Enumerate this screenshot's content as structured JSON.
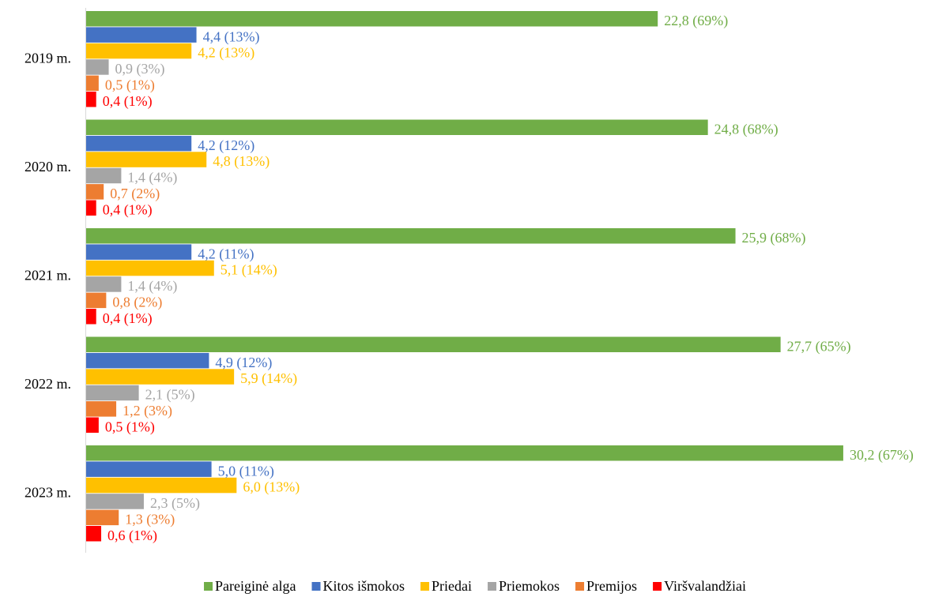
{
  "chart_data": {
    "type": "bar",
    "orientation": "horizontal",
    "categories": [
      "2019 m.",
      "2020 m.",
      "2021 m.",
      "2022 m.",
      "2023 m."
    ],
    "series": [
      {
        "name": "Pareiginė alga",
        "color": "#70ad47",
        "values": [
          22.8,
          24.8,
          25.9,
          27.7,
          30.2
        ],
        "value_labels": [
          "22,8 (69%)",
          "24,8 (68%)",
          "25,9 (68%)",
          "27,7 (65%)",
          "30,2 (67%)"
        ]
      },
      {
        "name": "Kitos išmokos",
        "color": "#4472c4",
        "values": [
          4.4,
          4.2,
          4.2,
          4.9,
          5.0
        ],
        "value_labels": [
          "4,4 (13%)",
          "4,2 (12%)",
          "4,2 (11%)",
          "4,9 (12%)",
          "5,0 (11%)"
        ]
      },
      {
        "name": "Priedai",
        "color": "#ffc000",
        "values": [
          4.2,
          4.8,
          5.1,
          5.9,
          6.0
        ],
        "value_labels": [
          "4,2 (13%)",
          "4,8 (13%)",
          "5,1 (14%)",
          "5,9 (14%)",
          "6,0 (13%)"
        ]
      },
      {
        "name": "Priemokos",
        "color": "#a5a5a5",
        "values": [
          0.9,
          1.4,
          1.4,
          2.1,
          2.3
        ],
        "value_labels": [
          "0,9 (3%)",
          "1,4 (4%)",
          "1,4 (4%)",
          "2,1 (5%)",
          "2,3 (5%)"
        ]
      },
      {
        "name": "Premijos",
        "color": "#ed7d31",
        "values": [
          0.5,
          0.7,
          0.8,
          1.2,
          1.3
        ],
        "value_labels": [
          "0,5 (1%)",
          "0,7 (2%)",
          "0,8 (2%)",
          "1,2 (3%)",
          "1,3 (3%)"
        ]
      },
      {
        "name": "Viršvalandžiai",
        "color": "#ff0000",
        "values": [
          0.4,
          0.4,
          0.4,
          0.5,
          0.6
        ],
        "value_labels": [
          "0,4 (1%)",
          "0,4 (1%)",
          "0,4 (1%)",
          "0,5 (1%)",
          "0,6 (1%)"
        ]
      }
    ],
    "legend": "bottom"
  }
}
